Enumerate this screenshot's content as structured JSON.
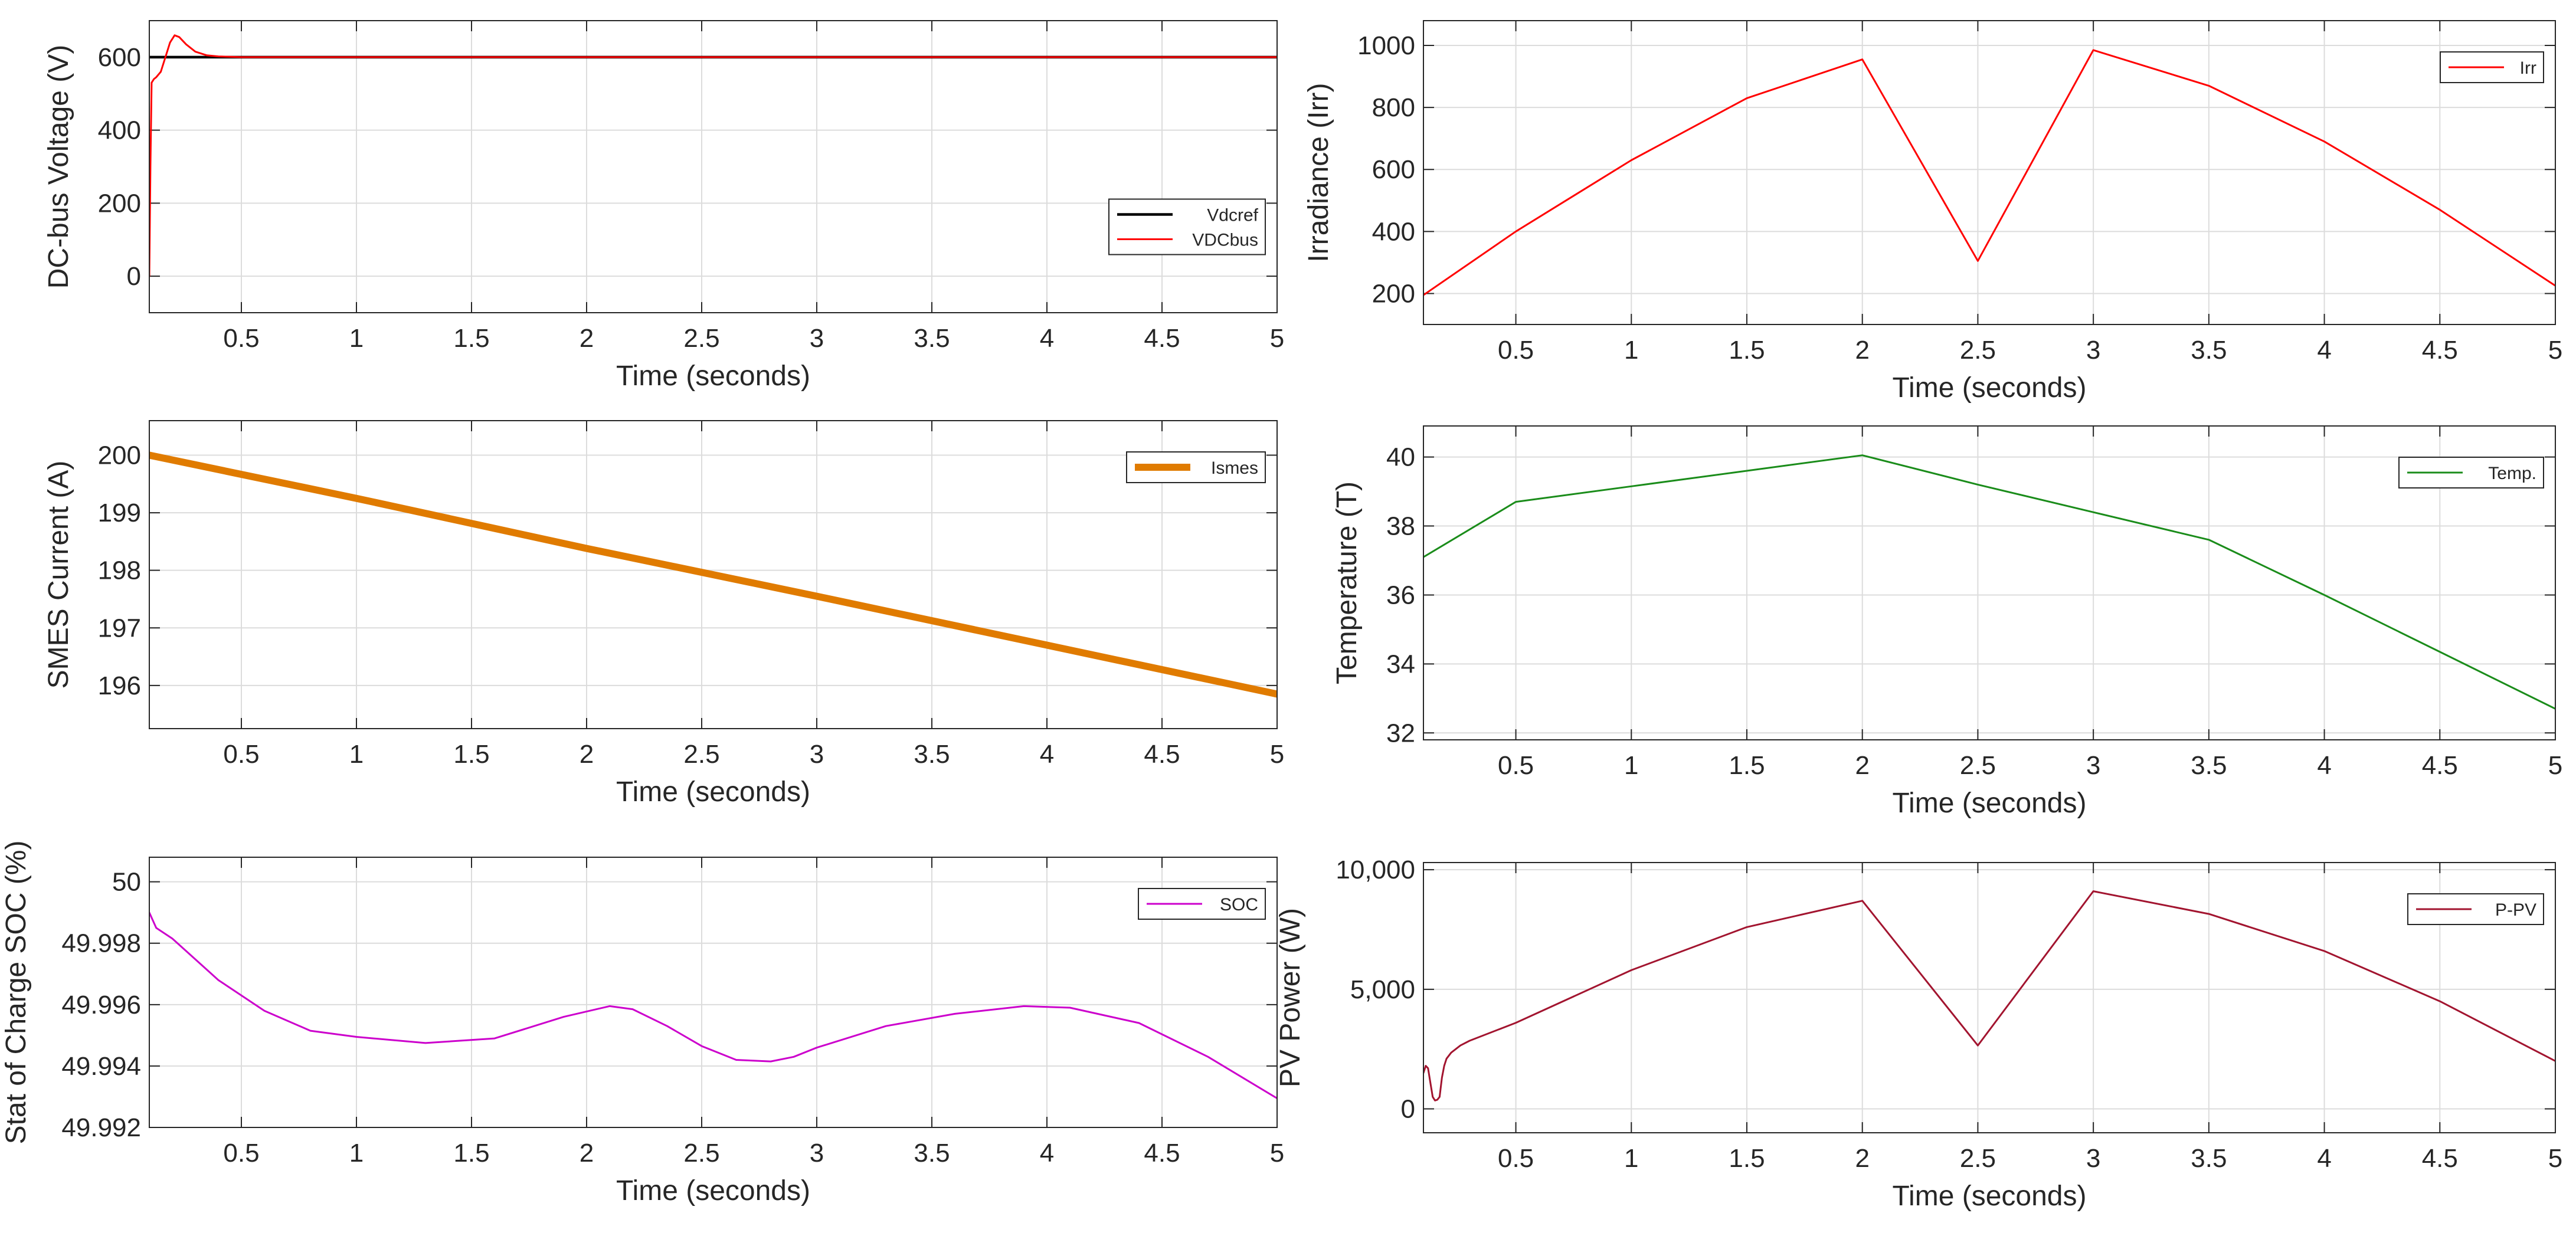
{
  "figure": {
    "background": "#ffffff"
  },
  "chart_data": [
    {
      "id": "dcbus",
      "type": "line",
      "xlabel": "Time (seconds)",
      "ylabel": "DC-bus Voltage (V)",
      "xlim": [
        0.1,
        5
      ],
      "ylim": [
        -100,
        700
      ],
      "xticks": [
        0.5,
        1,
        1.5,
        2,
        2.5,
        3,
        3.5,
        4,
        4.5,
        5
      ],
      "xtick_labels": [
        "0.5",
        "1",
        "1.5",
        "2",
        "2.5",
        "3",
        "3.5",
        "4",
        "4.5",
        "5"
      ],
      "yticks": [
        0,
        200,
        400,
        600
      ],
      "ytick_labels": [
        "0",
        "200",
        "400",
        "600"
      ],
      "grid": true,
      "legend_position": "right",
      "series": [
        {
          "name": "Vdcref",
          "color": "#000000",
          "width": 1.5,
          "x": [
            0.1,
            5
          ],
          "y": [
            600,
            600
          ]
        },
        {
          "name": "VDCbus",
          "color": "#ff0000",
          "width": 1,
          "x": [
            0.1,
            0.105,
            0.11,
            0.12,
            0.13,
            0.15,
            0.17,
            0.19,
            0.21,
            0.23,
            0.26,
            0.3,
            0.35,
            0.4,
            0.5,
            0.6,
            0.8,
            1,
            5
          ],
          "y": [
            0,
            300,
            530,
            540,
            545,
            560,
            600,
            640,
            660,
            655,
            635,
            615,
            605,
            602,
            600,
            600,
            600,
            600,
            600
          ]
        }
      ]
    },
    {
      "id": "irradiance",
      "type": "line",
      "xlabel": "Time (seconds)",
      "ylabel": "Irradiance (Irr)",
      "xlim": [
        0.1,
        5
      ],
      "ylim": [
        100,
        1080
      ],
      "xticks": [
        0.5,
        1,
        1.5,
        2,
        2.5,
        3,
        3.5,
        4,
        4.5,
        5
      ],
      "xtick_labels": [
        "0.5",
        "1",
        "1.5",
        "2",
        "2.5",
        "3",
        "3.5",
        "4",
        "4.5",
        "5"
      ],
      "yticks": [
        200,
        400,
        600,
        800,
        1000
      ],
      "ytick_labels": [
        "200",
        "400",
        "600",
        "800",
        "1000"
      ],
      "grid": true,
      "legend_position": "top-right",
      "series": [
        {
          "name": "Irr",
          "color": "#ff0000",
          "width": 1,
          "x": [
            0.1,
            0.5,
            1,
            1.5,
            2,
            2.5,
            3,
            3.5,
            4,
            4.5,
            5
          ],
          "y": [
            195,
            400,
            630,
            830,
            955,
            305,
            985,
            870,
            690,
            470,
            225
          ]
        }
      ]
    },
    {
      "id": "smes",
      "type": "line",
      "xlabel": "Time (seconds)",
      "ylabel": "SMES Current (A)",
      "xlim": [
        0.1,
        5
      ],
      "ylim": [
        195.25,
        200.6
      ],
      "xticks": [
        0.5,
        1,
        1.5,
        2,
        2.5,
        3,
        3.5,
        4,
        4.5,
        5
      ],
      "xtick_labels": [
        "0.5",
        "1",
        "1.5",
        "2",
        "2.5",
        "3",
        "3.5",
        "4",
        "4.5",
        "5"
      ],
      "yticks": [
        196,
        197,
        198,
        199,
        200
      ],
      "ytick_labels": [
        "196",
        "197",
        "198",
        "199",
        "200"
      ],
      "grid": true,
      "legend_position": "top-right",
      "series": [
        {
          "name": "Ismes",
          "color": "#e07b00",
          "width": 4,
          "x": [
            0.1,
            1,
            2,
            3,
            4,
            5
          ],
          "y": [
            200.0,
            199.25,
            198.38,
            197.55,
            196.7,
            195.85
          ]
        }
      ]
    },
    {
      "id": "temperature",
      "type": "line",
      "xlabel": "Time (seconds)",
      "ylabel": "Temperature (T)",
      "xlim": [
        0.1,
        5
      ],
      "ylim": [
        31.8,
        40.9
      ],
      "xticks": [
        0.5,
        1,
        1.5,
        2,
        2.5,
        3,
        3.5,
        4,
        4.5,
        5
      ],
      "xtick_labels": [
        "0.5",
        "1",
        "1.5",
        "2",
        "2.5",
        "3",
        "3.5",
        "4",
        "4.5",
        "5"
      ],
      "yticks": [
        32,
        34,
        36,
        38,
        40
      ],
      "ytick_labels": [
        "32",
        "34",
        "36",
        "38",
        "40"
      ],
      "grid": true,
      "legend_position": "top-right",
      "series": [
        {
          "name": "Temp.",
          "color": "#1a8c1a",
          "width": 1,
          "x": [
            0.1,
            0.5,
            1,
            1.5,
            2,
            2.5,
            3,
            3.5,
            4,
            4.5,
            5
          ],
          "y": [
            37.1,
            38.7,
            39.15,
            39.6,
            40.05,
            39.2,
            38.4,
            37.6,
            36.0,
            34.35,
            32.7
          ]
        }
      ]
    },
    {
      "id": "soc",
      "type": "line",
      "xlabel": "Time (seconds)",
      "ylabel": "Stat of Charge SOC (%)",
      "xlim": [
        0.1,
        5
      ],
      "ylim": [
        49.992,
        50.0008
      ],
      "xticks": [
        0.5,
        1,
        1.5,
        2,
        2.5,
        3,
        3.5,
        4,
        4.5,
        5
      ],
      "xtick_labels": [
        "0.5",
        "1",
        "1.5",
        "2",
        "2.5",
        "3",
        "3.5",
        "4",
        "4.5",
        "5"
      ],
      "yticks": [
        49.992,
        49.994,
        49.996,
        49.998,
        50
      ],
      "ytick_labels": [
        "49.992",
        "49.994",
        "49.996",
        "49.998",
        "50"
      ],
      "grid": true,
      "legend_position": "top-right",
      "series": [
        {
          "name": "SOC",
          "color": "#cc00cc",
          "width": 1,
          "x": [
            0.1,
            0.13,
            0.2,
            0.4,
            0.6,
            0.8,
            1.0,
            1.3,
            1.6,
            1.9,
            2.1,
            2.2,
            2.35,
            2.5,
            2.65,
            2.8,
            2.9,
            3.0,
            3.3,
            3.6,
            3.9,
            4.1,
            4.4,
            4.7,
            5.0
          ],
          "y": [
            49.999,
            49.9985,
            49.99815,
            49.9968,
            49.9958,
            49.99515,
            49.99495,
            49.99475,
            49.9949,
            49.9956,
            49.99595,
            49.99585,
            49.9953,
            49.99465,
            49.9942,
            49.99415,
            49.9943,
            49.9946,
            49.9953,
            49.9957,
            49.99595,
            49.9959,
            49.9954,
            49.9943,
            49.99295
          ]
        }
      ]
    },
    {
      "id": "pvpower",
      "type": "line",
      "xlabel": "Time (seconds)",
      "ylabel": "PV Power (W)",
      "xlim": [
        0.1,
        5
      ],
      "ylim": [
        -1000,
        10300
      ],
      "xticks": [
        0.5,
        1,
        1.5,
        2,
        2.5,
        3,
        3.5,
        4,
        4.5,
        5
      ],
      "xtick_labels": [
        "0.5",
        "1",
        "1.5",
        "2",
        "2.5",
        "3",
        "3.5",
        "4",
        "4.5",
        "5"
      ],
      "yticks": [
        0,
        5000,
        10000
      ],
      "ytick_labels": [
        "0",
        "5,000",
        "10,000"
      ],
      "grid": true,
      "legend_position": "top-right",
      "series": [
        {
          "name": "P-PV",
          "color": "#a2142f",
          "width": 1,
          "x": [
            0.1,
            0.11,
            0.12,
            0.13,
            0.14,
            0.15,
            0.16,
            0.17,
            0.18,
            0.19,
            0.2,
            0.22,
            0.26,
            0.3,
            0.5,
            1,
            1.5,
            2,
            2.5,
            3,
            3.5,
            4,
            4.5,
            5
          ],
          "y": [
            1500,
            1800,
            1700,
            1100,
            500,
            350,
            380,
            500,
            1300,
            1800,
            2100,
            2350,
            2650,
            2850,
            3600,
            5800,
            7600,
            8700,
            2650,
            9100,
            8150,
            6600,
            4500,
            2000
          ]
        }
      ]
    }
  ]
}
